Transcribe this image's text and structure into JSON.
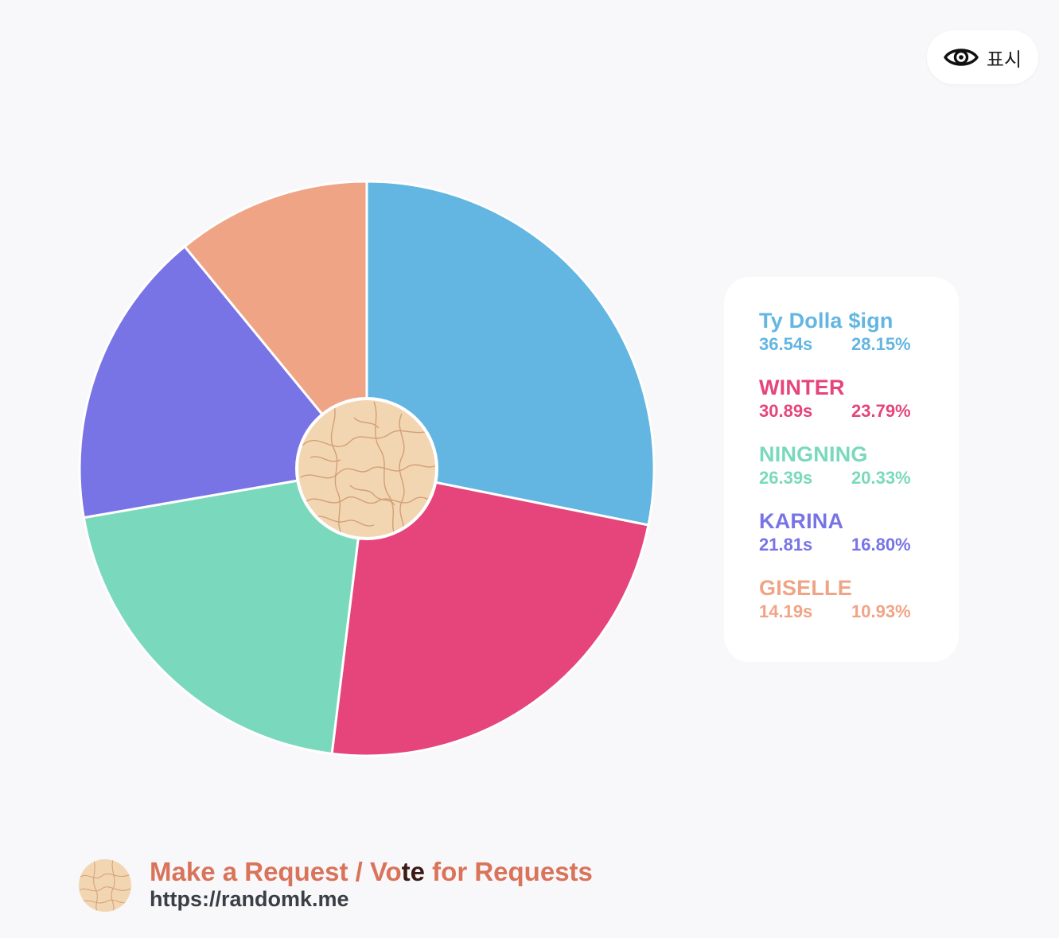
{
  "show_button": {
    "label": "표시",
    "icon": "eye-icon"
  },
  "chart_data": {
    "type": "pie",
    "series": [
      {
        "name": "Ty Dolla $ign",
        "seconds": "36.54s",
        "percent_label": "28.15%",
        "value": 28.15,
        "color": "#62b6e1"
      },
      {
        "name": "WINTER",
        "seconds": "30.89s",
        "percent_label": "23.79%",
        "value": 23.79,
        "color": "#e5457a"
      },
      {
        "name": "NINGNING",
        "seconds": "26.39s",
        "percent_label": "20.33%",
        "value": 20.33,
        "color": "#7ad9bc"
      },
      {
        "name": "KARINA",
        "seconds": "21.81s",
        "percent_label": "16.80%",
        "value": 16.8,
        "color": "#7874e6"
      },
      {
        "name": "GISELLE",
        "seconds": "14.19s",
        "percent_label": "10.93%",
        "value": 10.93,
        "color": "#f0a486"
      }
    ],
    "legend": "right",
    "center_fill": "#f2d6b2",
    "title": "",
    "xlabel": "",
    "ylabel": ""
  },
  "footer": {
    "title_before": "Make a Request / Vo",
    "title_highlight": "te",
    "title_after": " for Requests",
    "url": "https://randomk.me"
  },
  "colors": {
    "background": "#f8f7f9",
    "footer_title": "#d9735a",
    "footer_url": "#3a3f45"
  }
}
